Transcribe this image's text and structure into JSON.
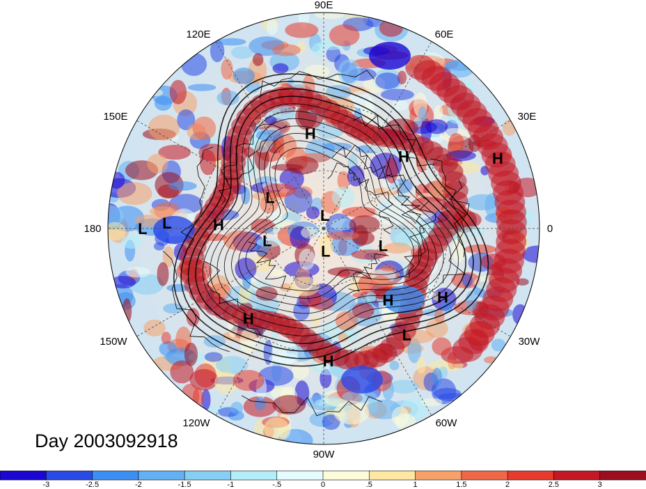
{
  "title": "Day 2003092918",
  "longitude_labels": [
    {
      "text": "90E",
      "pos": "top"
    },
    {
      "text": "60E",
      "pos": "top-right-upper"
    },
    {
      "text": "30E",
      "pos": "top-right-lower"
    },
    {
      "text": "0",
      "pos": "right"
    },
    {
      "text": "30W",
      "pos": "bottom-right-upper"
    },
    {
      "text": "60W",
      "pos": "bottom-right-lower"
    },
    {
      "text": "90W",
      "pos": "bottom"
    },
    {
      "text": "120W",
      "pos": "bottom-left-lower"
    },
    {
      "text": "150W",
      "pos": "bottom-left-upper"
    },
    {
      "text": "180",
      "pos": "left"
    },
    {
      "text": "150E",
      "pos": "top-left-lower"
    },
    {
      "text": "120E",
      "pos": "top-left-upper"
    }
  ],
  "pressure_centers": [
    {
      "type": "H",
      "lon": 98,
      "lat": 42
    },
    {
      "type": "H",
      "lon": 42,
      "lat": 37
    },
    {
      "type": "H",
      "lon": 22,
      "lat": 8
    },
    {
      "type": "H",
      "lon": 178,
      "lat": 38
    },
    {
      "type": "H",
      "lon": -48,
      "lat": 42
    },
    {
      "type": "H",
      "lon": -30,
      "lat": 25
    },
    {
      "type": "H",
      "lon": -130,
      "lat": 33
    },
    {
      "type": "H",
      "lon": -88,
      "lat": 27
    },
    {
      "type": "L",
      "lon": 150,
      "lat": 58
    },
    {
      "type": "L",
      "lon": 180,
      "lat": 10
    },
    {
      "type": "L",
      "lon": 178,
      "lat": 18
    },
    {
      "type": "L",
      "lon": -168,
      "lat": 60
    },
    {
      "type": "L",
      "lon": -16,
      "lat": 58
    },
    {
      "type": "L",
      "lon": 85,
      "lat": 83
    },
    {
      "type": "L",
      "lon": -85,
      "lat": 78
    },
    {
      "type": "L",
      "lon": -52,
      "lat": 26
    }
  ],
  "colorbar": {
    "colors": [
      "#1a07d2",
      "#2a4ae6",
      "#3c8ef2",
      "#63b0f2",
      "#86cef4",
      "#b3eef8",
      "#e6fbfd",
      "#fefbdb",
      "#fde7a1",
      "#f6a06a",
      "#ee6746",
      "#e53a2e",
      "#c41825",
      "#9a0e1f"
    ],
    "labels": [
      "-3",
      "-2.5",
      "-2",
      "-1.5",
      "-1",
      "-.5",
      "0",
      ".5",
      "1",
      "1.5",
      "2",
      "2.5",
      "3"
    ]
  }
}
